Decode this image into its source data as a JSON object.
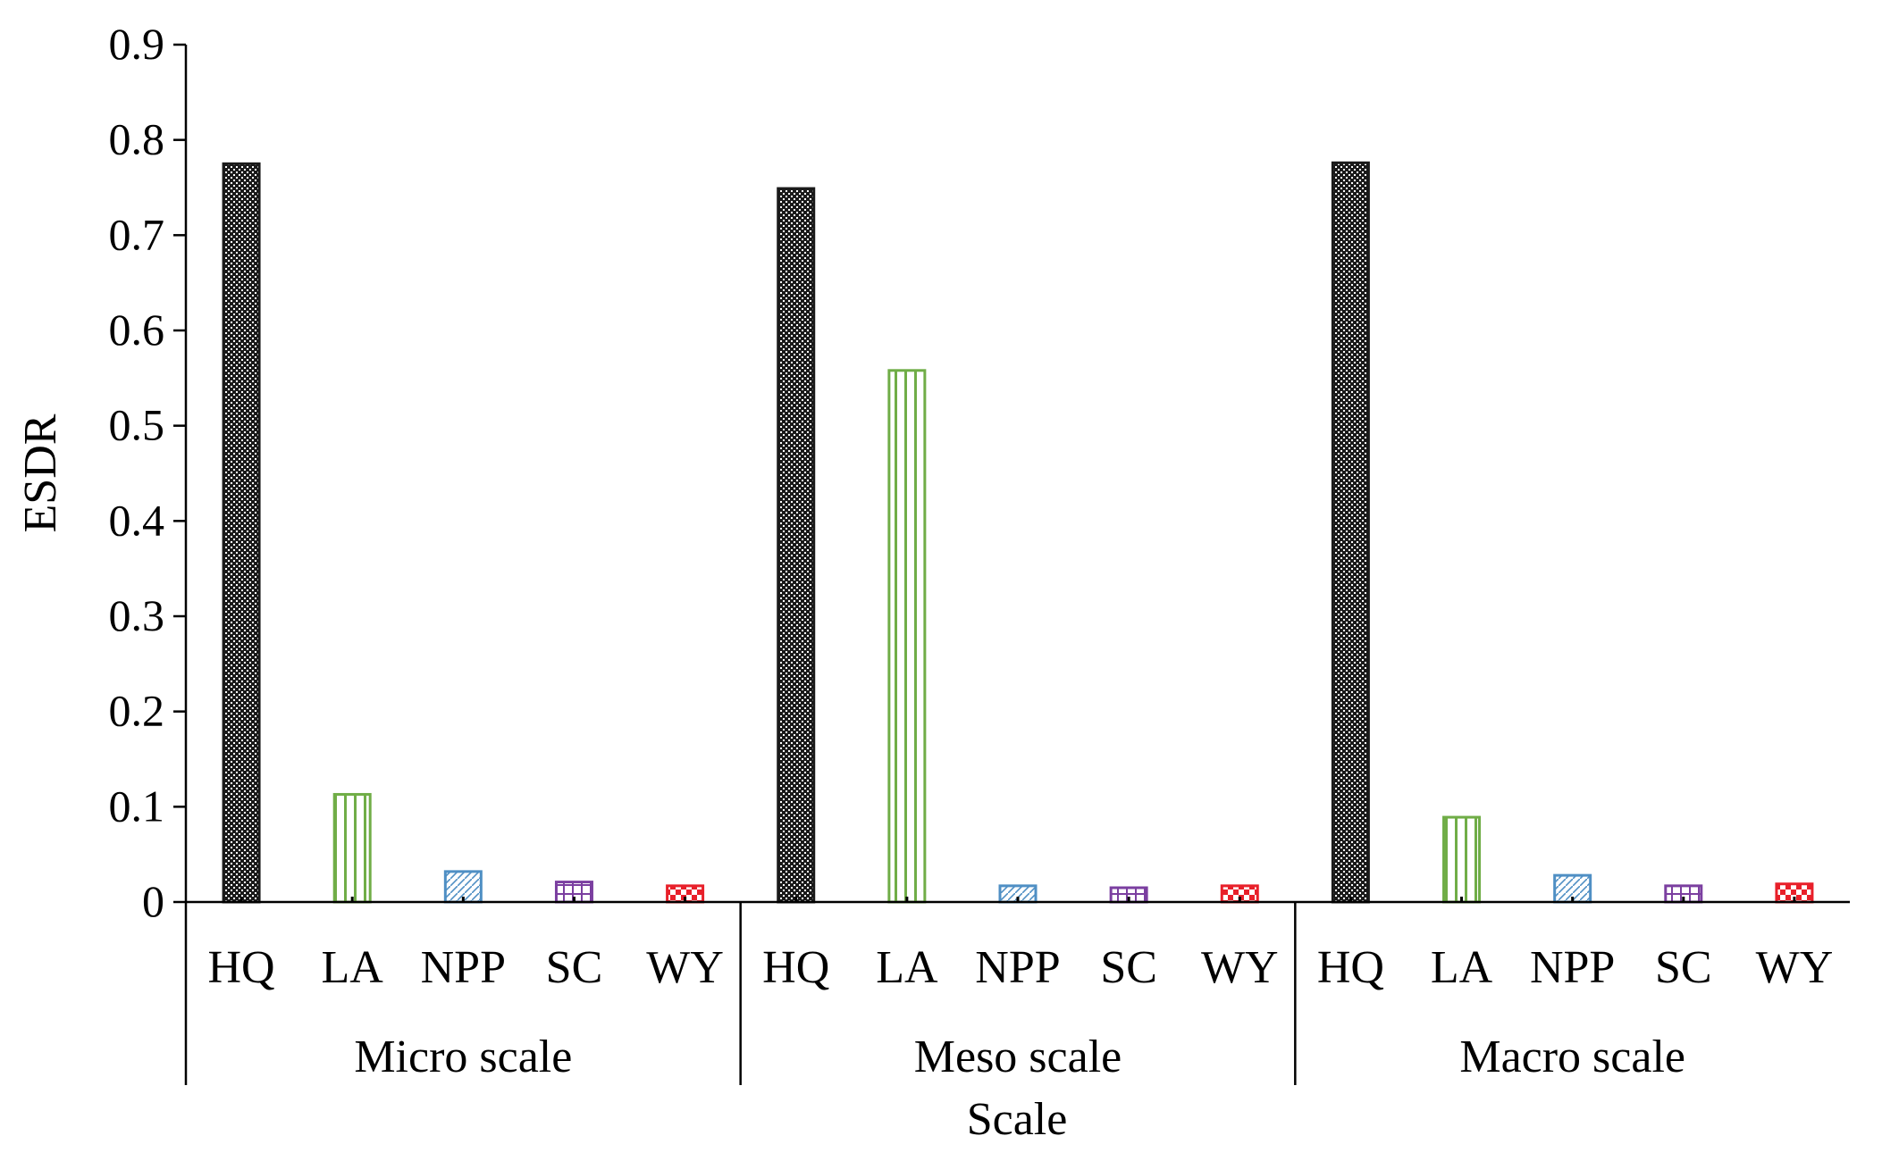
{
  "chart_data": {
    "type": "bar",
    "title": "",
    "ylabel": "ESDR",
    "xlabel": "Scale",
    "ylim": [
      0,
      0.9
    ],
    "yticks": [
      "0",
      "0.1",
      "0.2",
      "0.3",
      "0.4",
      "0.5",
      "0.6",
      "0.7",
      "0.8",
      "0.9"
    ],
    "groups": [
      {
        "name": "Micro scale",
        "bars": [
          {
            "label": "HQ",
            "value": 0.775
          },
          {
            "label": "LA",
            "value": 0.113
          },
          {
            "label": "NPP",
            "value": 0.032
          },
          {
            "label": "SC",
            "value": 0.021
          },
          {
            "label": "WY",
            "value": 0.017
          }
        ]
      },
      {
        "name": "Meso scale",
        "bars": [
          {
            "label": "HQ",
            "value": 0.749
          },
          {
            "label": "LA",
            "value": 0.558
          },
          {
            "label": "NPP",
            "value": 0.017
          },
          {
            "label": "SC",
            "value": 0.015
          },
          {
            "label": "WY",
            "value": 0.017
          }
        ]
      },
      {
        "name": "Macro scale",
        "bars": [
          {
            "label": "HQ",
            "value": 0.776
          },
          {
            "label": "LA",
            "value": 0.089
          },
          {
            "label": "NPP",
            "value": 0.028
          },
          {
            "label": "SC",
            "value": 0.017
          },
          {
            "label": "WY",
            "value": 0.019
          }
        ]
      }
    ],
    "colors": {
      "HQ": "#1a1a1a",
      "LA": "#70ad47",
      "NPP": "#4f8fc4",
      "SC": "#7b3fa0",
      "WY": "#e8202a"
    }
  }
}
